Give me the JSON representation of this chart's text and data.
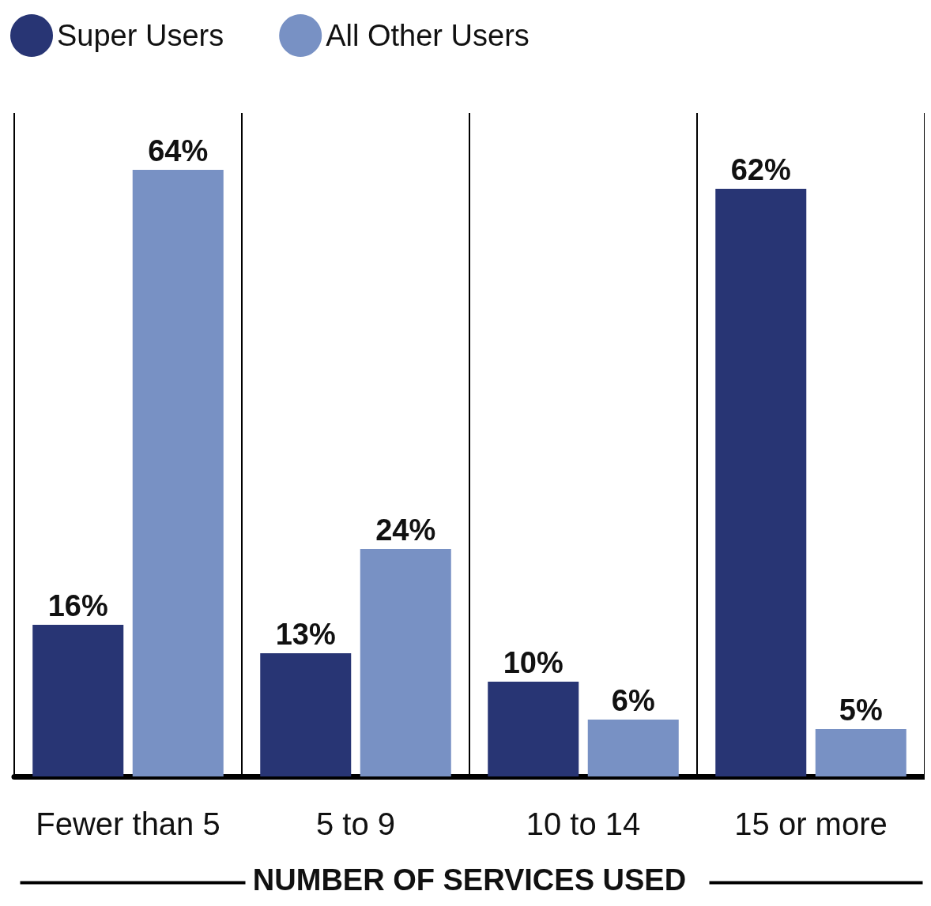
{
  "chart_data": {
    "type": "bar",
    "xlabel": "NUMBER OF SERVICES USED",
    "categories": [
      "Fewer than 5",
      "5 to 9",
      "10 to 14",
      "15 or more"
    ],
    "series": [
      {
        "name": "Super Users",
        "color": "#283574",
        "values": [
          16,
          13,
          10,
          62
        ],
        "value_labels": [
          "16%",
          "13%",
          "10%",
          "62%"
        ]
      },
      {
        "name": "All Other Users",
        "color": "#7891c4",
        "values": [
          64,
          24,
          6,
          5
        ],
        "value_labels": [
          "64%",
          "24%",
          "6%",
          "5%"
        ]
      }
    ],
    "legend": "top left",
    "grid": "x"
  }
}
